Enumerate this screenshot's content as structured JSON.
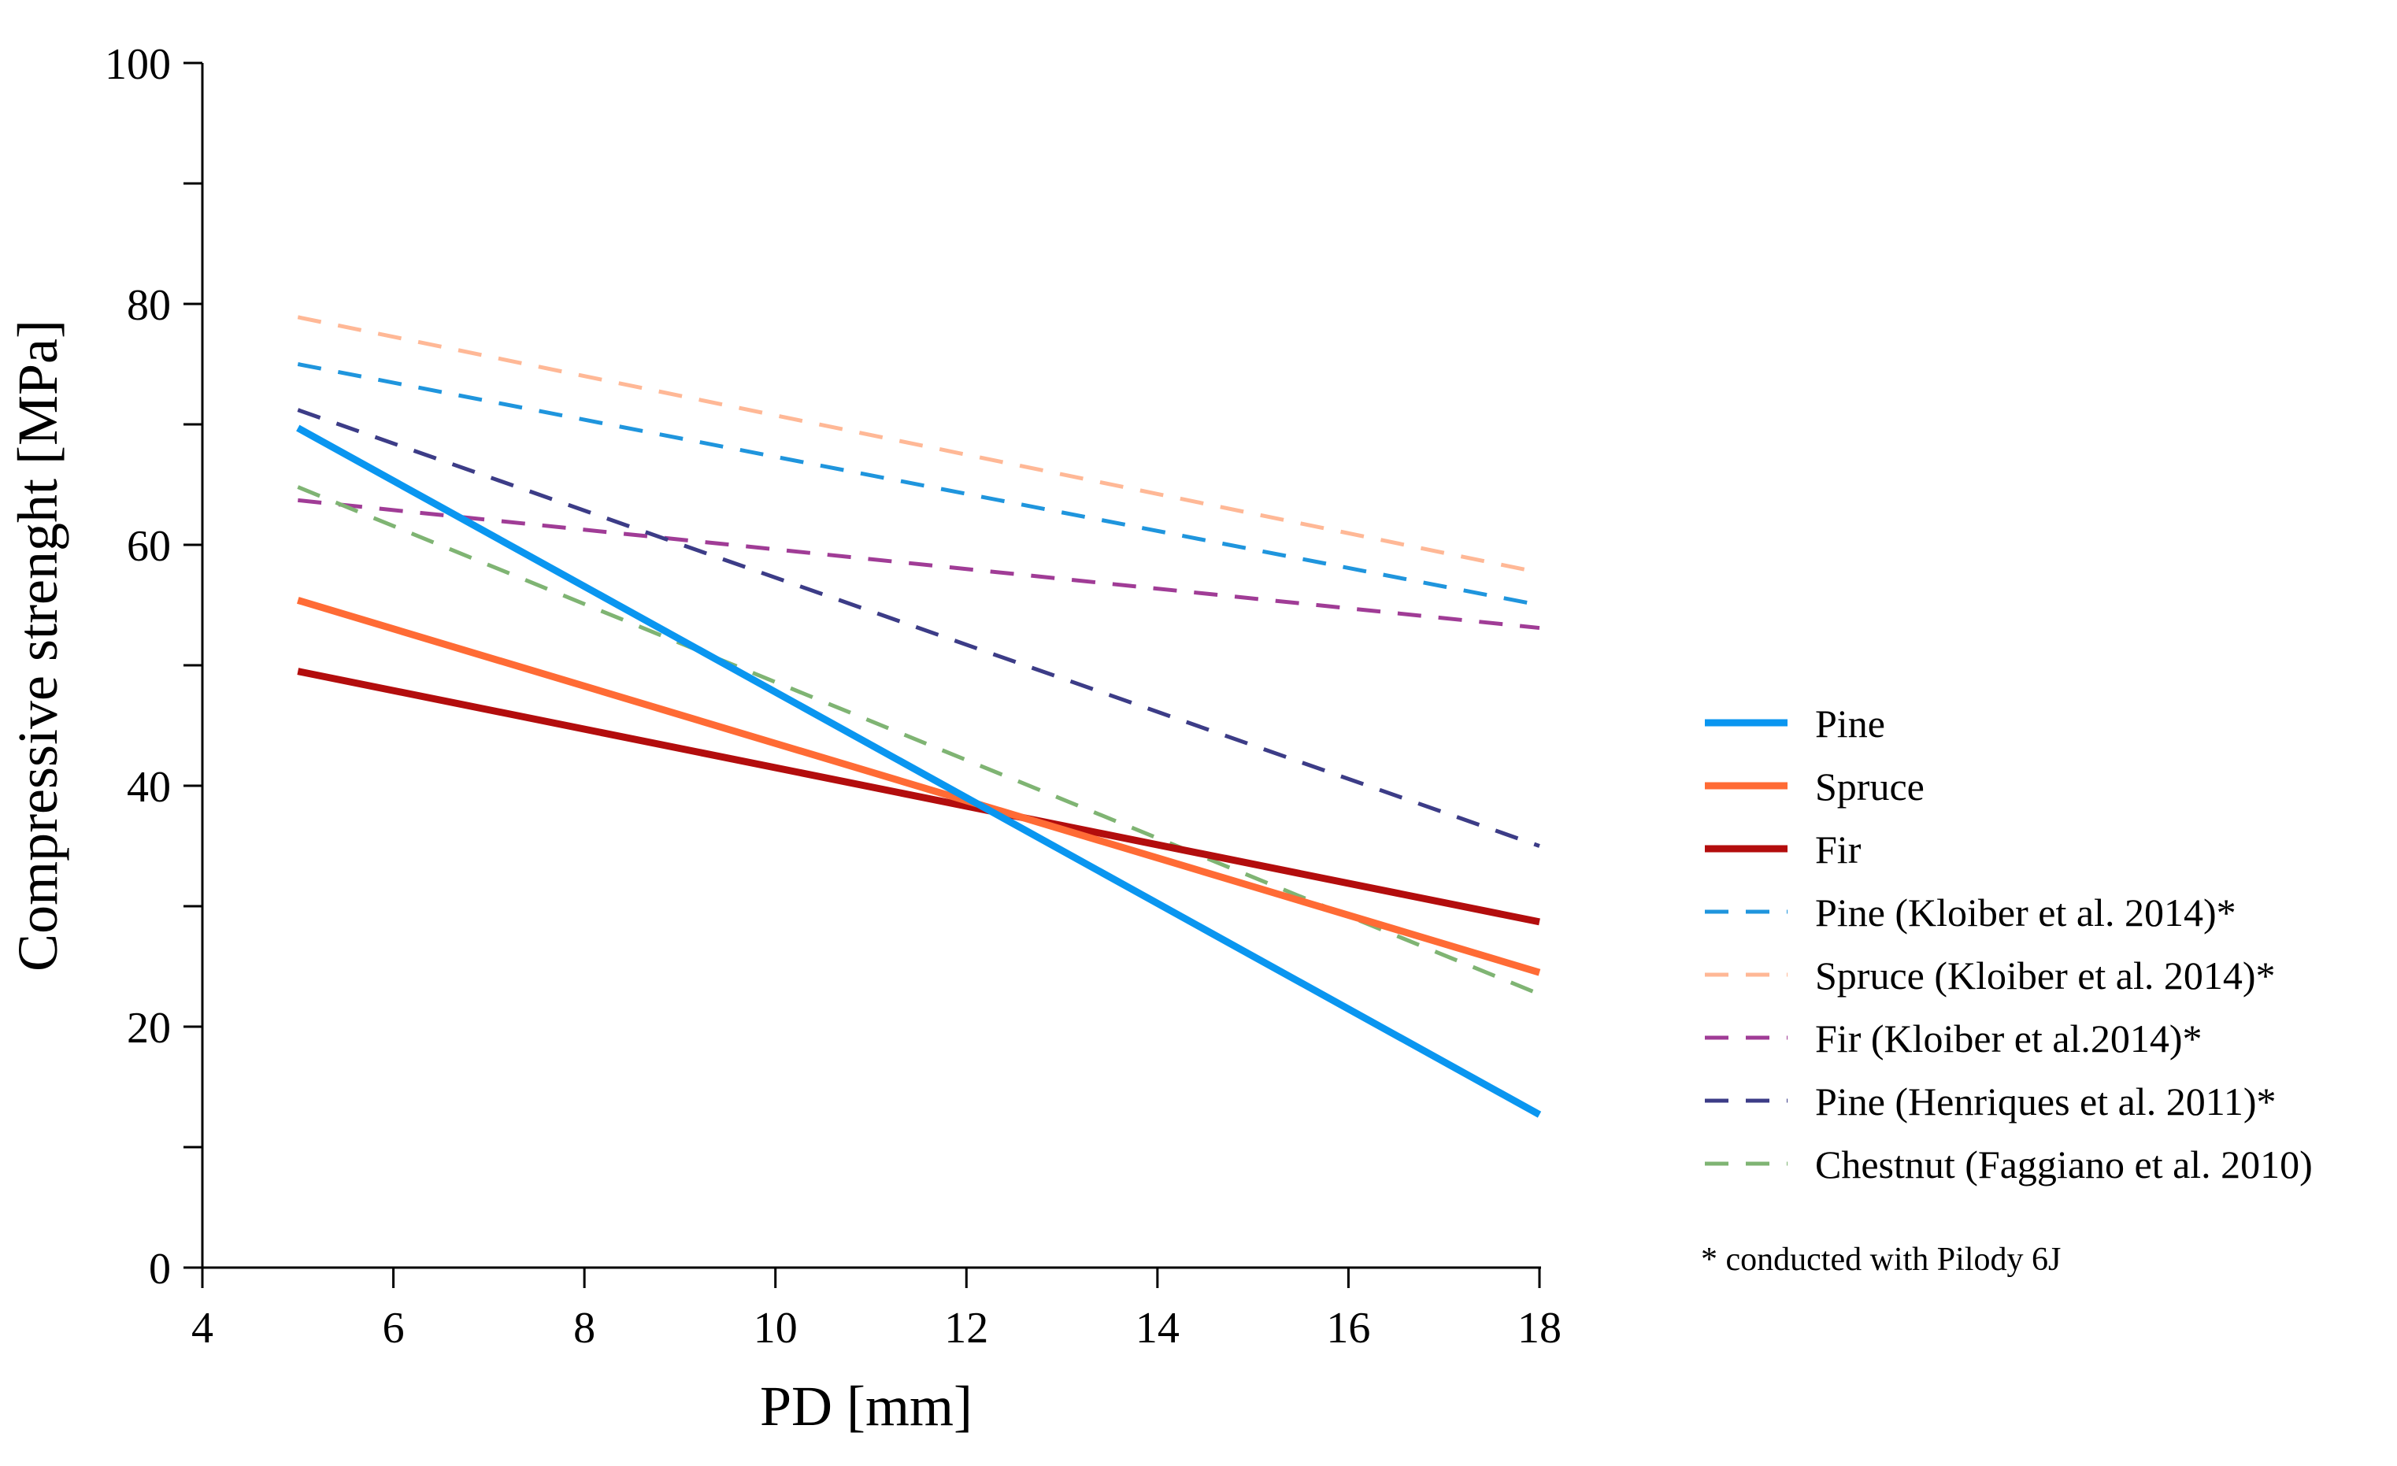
{
  "chart_data": {
    "type": "line",
    "xlabel": "PD [mm]",
    "ylabel": "Compressive strenght [MPa]",
    "xlim": [
      4,
      18
    ],
    "ylim": [
      0,
      100
    ],
    "xticks": [
      4,
      6,
      8,
      10,
      12,
      14,
      16,
      18
    ],
    "yticks": [
      0,
      20,
      40,
      60,
      80,
      100
    ],
    "grid": false,
    "legend_position": "right",
    "footnote": "* conducted with Pilody 6J",
    "series": [
      {
        "name": "Pine",
        "x": [
          5,
          18
        ],
        "y": [
          69.7,
          12.7
        ],
        "color": "#0a96f0",
        "style": "solid"
      },
      {
        "name": "Spruce",
        "x": [
          5,
          18
        ],
        "y": [
          55.4,
          24.5
        ],
        "color": "#ff6b35",
        "style": "solid"
      },
      {
        "name": "Fir",
        "x": [
          5,
          18
        ],
        "y": [
          49.5,
          28.7
        ],
        "color": "#b30d0d",
        "style": "solid"
      },
      {
        "name": "Pine (Kloiber et al. 2014)*",
        "x": [
          5,
          18
        ],
        "y": [
          75.0,
          55.0
        ],
        "color": "#1f95dd",
        "style": "dashed"
      },
      {
        "name": "Spruce (Kloiber et al. 2014)*",
        "x": [
          5,
          18
        ],
        "y": [
          78.9,
          57.7
        ],
        "color": "#ffb896",
        "style": "dashed"
      },
      {
        "name": "Fir (Kloiber et al.2014)*",
        "x": [
          5,
          18
        ],
        "y": [
          63.7,
          53.1
        ],
        "color": "#a03c96",
        "style": "dashed"
      },
      {
        "name": "Pine (Henriques et al. 2011)*",
        "x": [
          5,
          18
        ],
        "y": [
          71.2,
          35.0
        ],
        "color": "#3c3c87",
        "style": "dashed"
      },
      {
        "name": "Chestnut (Faggiano et al. 2010)",
        "x": [
          5,
          18
        ],
        "y": [
          64.8,
          22.7
        ],
        "color": "#7fb473",
        "style": "dashed"
      }
    ]
  }
}
